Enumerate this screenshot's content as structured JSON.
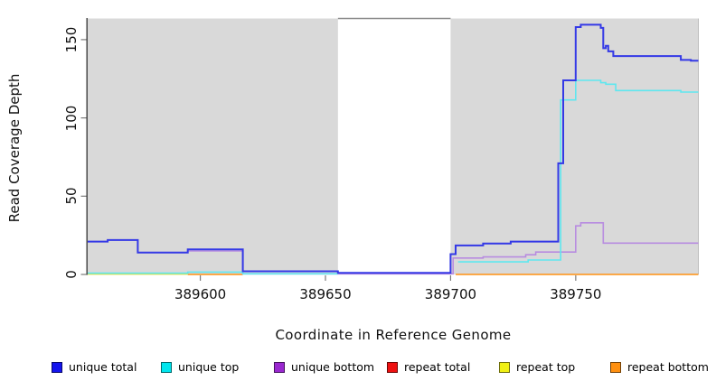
{
  "chart_data": {
    "type": "line",
    "title": "",
    "xlabel": "Coordinate in Reference Genome",
    "ylabel": "Read Coverage Depth",
    "xlim": [
      389555,
      389799
    ],
    "ylim": [
      0,
      163.5
    ],
    "x_ticks": [
      389600,
      389650,
      389700,
      389750
    ],
    "y_ticks": [
      0,
      50,
      100,
      150
    ],
    "grid": false,
    "legend_position": "bottom",
    "line_style": "step-after",
    "background_bands": {
      "color": "#d9d9d9",
      "note": "shaded covered regions; white gap between 389655 and 389700",
      "x_ranges": [
        [
          389555,
          389655
        ],
        [
          389700,
          389799
        ]
      ]
    },
    "series": [
      {
        "name": "unique total",
        "legend_color": "#1414ee",
        "line_color": "#3439e6",
        "line_width": 2,
        "segments": [
          [
            [
              389555,
              21
            ],
            [
              389563,
              22
            ],
            [
              389575,
              14
            ],
            [
              389595,
              16
            ],
            [
              389617,
              2
            ],
            [
              389655,
              1
            ],
            [
              389700,
              13
            ],
            [
              389702,
              18.5
            ],
            [
              389713,
              19.8
            ],
            [
              389724,
              21
            ],
            [
              389743,
              71
            ],
            [
              389745,
              124
            ],
            [
              389750,
              158
            ],
            [
              389752,
              159.5
            ],
            [
              389760,
              157.5
            ],
            [
              389761,
              144.5
            ],
            [
              389762,
              146
            ],
            [
              389763,
              142.5
            ],
            [
              389765,
              139.5
            ],
            [
              389792,
              137
            ],
            [
              389796,
              136.5
            ],
            [
              389799,
              136.5
            ]
          ]
        ]
      },
      {
        "name": "unique top",
        "legend_color": "#00e6ee",
        "line_color": "#5fe7ef",
        "line_width": 1.6,
        "segments": [
          [
            [
              389555,
              0.8
            ],
            [
              389595,
              1.5
            ],
            [
              389617,
              0.4
            ],
            [
              389655,
              0.4
            ]
          ],
          [
            [
              389703,
              8
            ],
            [
              389731,
              9.2
            ],
            [
              389744,
              111.5
            ],
            [
              389750,
              124
            ],
            [
              389760,
              122.5
            ],
            [
              389762,
              121.5
            ],
            [
              389766,
              117.5
            ],
            [
              389792,
              116.5
            ],
            [
              389799,
              116.5
            ]
          ]
        ]
      },
      {
        "name": "unique bottom",
        "legend_color": "#9a28d0",
        "line_color": "#b88ce0",
        "line_width": 1.6,
        "segments": [
          [
            [
              389595,
              15
            ],
            [
              389617,
              0.4
            ],
            [
              389701,
              10.5
            ],
            [
              389713,
              11.2
            ],
            [
              389730,
              12.6
            ],
            [
              389734,
              14.3
            ],
            [
              389750,
              31
            ],
            [
              389752,
              33
            ],
            [
              389761,
              20
            ],
            [
              389799,
              20
            ]
          ]
        ]
      },
      {
        "name": "repeat total",
        "legend_color": "#ee1111",
        "line_color": "#ee1111",
        "line_width": 1.4,
        "segments": []
      },
      {
        "name": "repeat top",
        "legend_color": "#f0f014",
        "line_color": "#dede3c",
        "line_width": 1.4,
        "segments": [
          [
            [
              389555,
              0.2
            ],
            [
              389595,
              0.2
            ]
          ]
        ]
      },
      {
        "name": "repeat bottom",
        "legend_color": "#ff9010",
        "line_color": "#ff9010",
        "line_width": 1.6,
        "segments": [
          [
            [
              389595,
              0
            ],
            [
              389617,
              0
            ]
          ],
          [
            [
              389702,
              0
            ],
            [
              389799,
              0
            ]
          ]
        ]
      }
    ]
  },
  "labels": {
    "xlabel": "Coordinate in Reference Genome",
    "ylabel": "Read Coverage Depth"
  }
}
